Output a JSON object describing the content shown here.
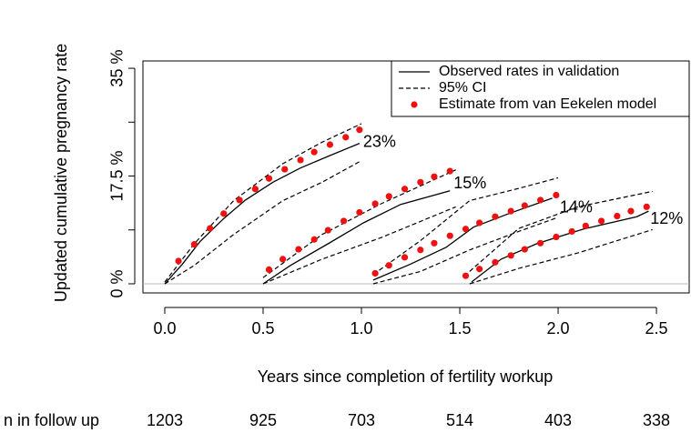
{
  "chart_data": {
    "type": "line",
    "x_label": "Years since completion of fertility workup",
    "y_label": "Updated cumulative pregnancy rate",
    "xlim": [
      -0.111,
      2.671
    ],
    "ylim": [
      -1.48,
      36.19
    ],
    "xticks": [
      {
        "value": 0,
        "label": "0.0"
      },
      0.5,
      {
        "value": 1,
        "label": "1.0"
      },
      1.5,
      {
        "value": 2,
        "label": "2.0"
      },
      2.5
    ],
    "yticks": [
      {
        "value": 0,
        "label": "0 %"
      },
      {
        "value": 17.5,
        "label": "17.5 %"
      },
      {
        "value": 35,
        "label": "35 %"
      }
    ],
    "yminorticks": [
      8.75,
      26.25
    ],
    "reference_line": 0,
    "legend": "top-right",
    "series": [
      {
        "name": "Observed rates in validation",
        "style": "solid",
        "color": "#000000",
        "x": [
          0,
          0.09,
          0.18,
          0.3,
          0.41,
          0.55,
          0.69,
          0.83,
          0.99,
          null,
          0.5,
          0.64,
          0.83,
          1.01,
          1.2,
          1.45,
          null,
          1.06,
          1.25,
          1.43,
          1.57,
          1.75,
          1.97,
          null,
          1.56,
          1.71,
          1.89,
          2.13,
          2.4,
          2.46
        ],
        "values": [
          0,
          3.2,
          6.9,
          10.6,
          13.6,
          16.5,
          18.8,
          20.7,
          22.8,
          null,
          0,
          3.0,
          6.5,
          9.9,
          12.9,
          15.1,
          null,
          0.6,
          3.2,
          5.9,
          9.2,
          11.4,
          13.9,
          null,
          0.3,
          4.0,
          6.5,
          8.9,
          10.9,
          11.8
        ]
      },
      {
        "name": "95% CI",
        "style": "dashed",
        "color": "#000000",
        "x": [
          0,
          0.15,
          0.35,
          0.6,
          0.8,
          1.0,
          null,
          0.5,
          0.8,
          1.1,
          1.48,
          null,
          1.06,
          1.3,
          1.55,
          1.8,
          2.0,
          null,
          1.55,
          1.8,
          2.1,
          2.48
        ],
        "upper": [
          0.3,
          6.5,
          13.5,
          19.5,
          23,
          26,
          null,
          1,
          8,
          13,
          18.5,
          null,
          1.5,
          7,
          13.5,
          15.5,
          17.2,
          null,
          2,
          9,
          12.5,
          15
        ],
        "lower": [
          0,
          3,
          8,
          13.5,
          16.5,
          20,
          null,
          0,
          4,
          7.5,
          12.5,
          null,
          0,
          2,
          5.5,
          8.5,
          10.8,
          null,
          0,
          2.5,
          5,
          8.8
        ]
      },
      {
        "name": "Estimate from van Eekelen model",
        "style": "points",
        "color": "#ee1111",
        "x": [
          0.07,
          0.15,
          0.23,
          0.3,
          0.38,
          0.46,
          0.53,
          0.61,
          0.69,
          0.76,
          0.84,
          0.92,
          0.99,
          null,
          0.53,
          0.6,
          0.68,
          0.76,
          0.83,
          0.91,
          0.99,
          1.07,
          1.14,
          1.22,
          1.3,
          1.37,
          1.45,
          null,
          1.07,
          1.14,
          1.22,
          1.3,
          1.37,
          1.45,
          1.53,
          1.6,
          1.68,
          1.76,
          1.83,
          1.91,
          1.99,
          null,
          1.53,
          1.6,
          1.68,
          1.76,
          1.83,
          1.91,
          1.99,
          2.07,
          2.14,
          2.22,
          2.3,
          2.37,
          2.45
        ],
        "values": [
          3.7,
          6.4,
          9.0,
          11.4,
          13.6,
          15.4,
          17.1,
          18.6,
          20.1,
          21.4,
          22.6,
          23.8,
          25.0,
          null,
          2.3,
          4.0,
          5.6,
          7.2,
          8.7,
          10.2,
          11.6,
          13.0,
          14.2,
          15.4,
          16.5,
          17.4,
          18.3,
          null,
          1.7,
          3.0,
          4.3,
          5.5,
          6.6,
          7.8,
          8.9,
          9.9,
          10.9,
          11.8,
          12.7,
          13.6,
          14.4,
          null,
          1.3,
          2.4,
          3.5,
          4.6,
          5.6,
          6.6,
          7.6,
          8.5,
          9.4,
          10.2,
          11.0,
          11.8,
          12.5
        ]
      }
    ],
    "end_labels": [
      "23%",
      "15%",
      "14%",
      "12%"
    ],
    "follow_up": {
      "label": "n in follow up",
      "values": [
        1203,
        925,
        703,
        514,
        403,
        338
      ]
    }
  }
}
